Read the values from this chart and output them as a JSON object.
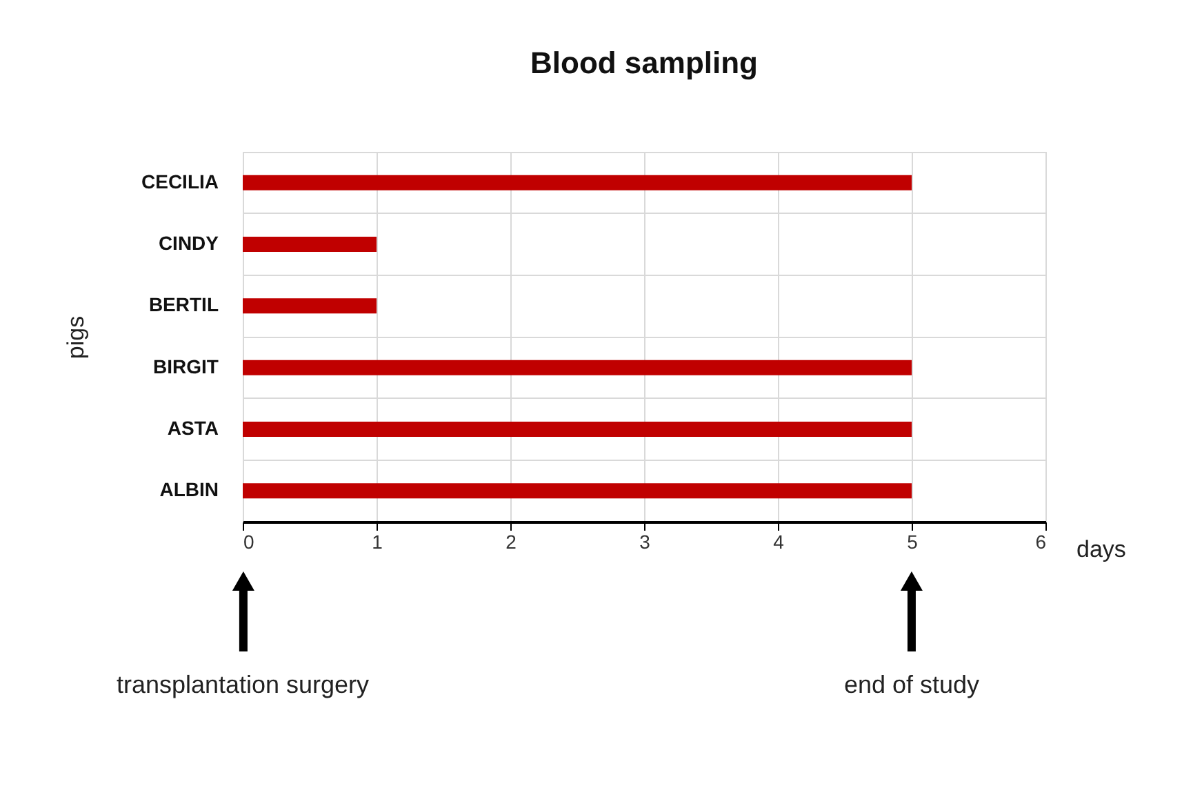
{
  "chart_data": {
    "type": "bar",
    "orientation": "horizontal",
    "title": "Blood sampling",
    "xlabel": "days",
    "ylabel": "pigs",
    "categories": [
      "CECILIA",
      "CINDY",
      "BERTIL",
      "BIRGIT",
      "ASTA",
      "ALBIN"
    ],
    "values": [
      5,
      1,
      1,
      5,
      5,
      5
    ],
    "color": "#c00000",
    "xlim": [
      0,
      6
    ],
    "xticks": [
      0,
      1,
      2,
      3,
      4,
      5,
      6
    ],
    "grid": true,
    "annotations": [
      "transplantation surgery",
      "end of study"
    ]
  }
}
